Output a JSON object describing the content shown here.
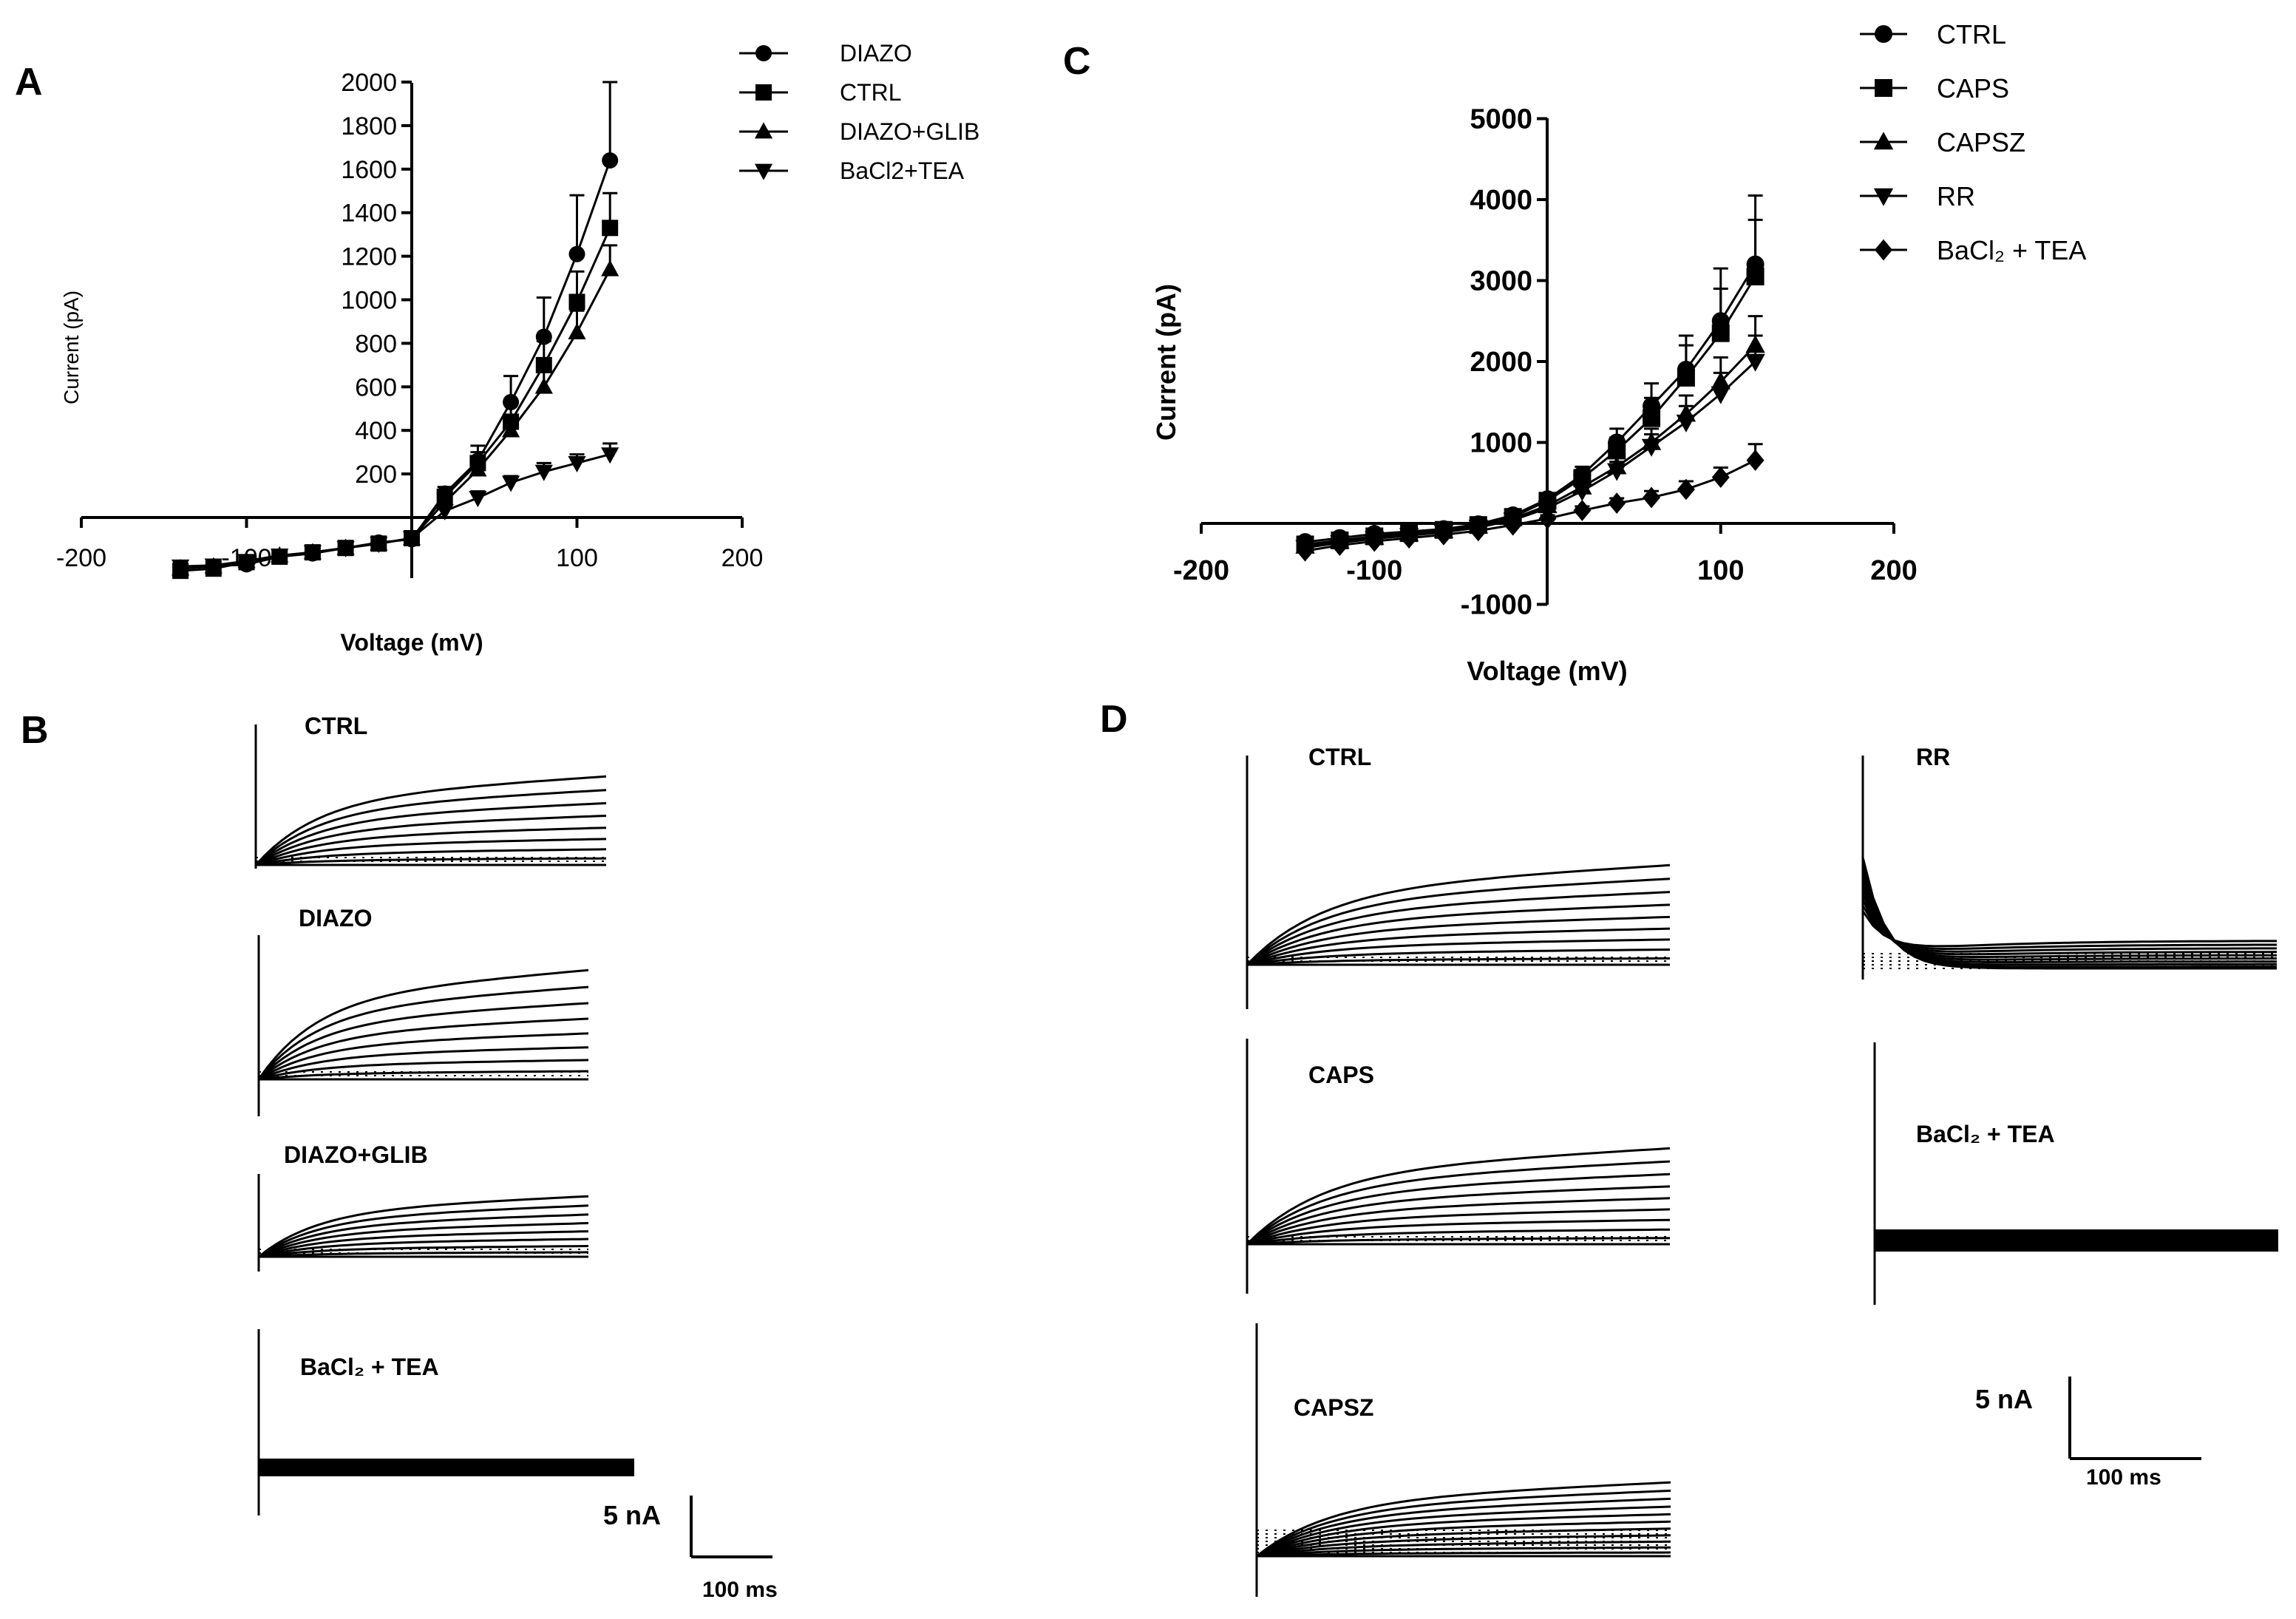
{
  "panels": {
    "a": "A",
    "b": "B",
    "c": "C",
    "d": "D"
  },
  "chart_data": [
    {
      "id": "A",
      "type": "line",
      "title": "",
      "xlabel": "Voltage (mV)",
      "ylabel": "Current (pA)",
      "xlim": [
        -200,
        200
      ],
      "ylim": [
        -300,
        2000
      ],
      "xticks": [
        -200,
        -100,
        100,
        200
      ],
      "xtick_labels": [
        "-200",
        "-100",
        "100",
        "200"
      ],
      "yticks": [
        200,
        400,
        600,
        800,
        1000,
        1200,
        1400,
        1600,
        1800,
        2000
      ],
      "ytick_labels": [
        "200",
        "400",
        "600",
        "800",
        "1000",
        "1200",
        "1400",
        "1600",
        "1800",
        "2000"
      ],
      "legend_position": "top-right",
      "x": [
        -140,
        -120,
        -100,
        -80,
        -60,
        -40,
        -20,
        0,
        20,
        40,
        60,
        80,
        100,
        120
      ],
      "series": [
        {
          "name": "DIAZO",
          "marker": "circle",
          "values": [
            -230,
            -225,
            -215,
            -180,
            -165,
            -140,
            -115,
            -100,
            110,
            260,
            530,
            830,
            1210,
            1640
          ],
          "errors": [
            20,
            20,
            20,
            20,
            15,
            15,
            15,
            15,
            30,
            70,
            120,
            180,
            270,
            360
          ]
        },
        {
          "name": "CTRL",
          "marker": "square",
          "values": [
            -245,
            -235,
            -205,
            -180,
            -160,
            -140,
            -120,
            -95,
            95,
            250,
            440,
            700,
            990,
            1330
          ],
          "errors": [
            20,
            20,
            20,
            20,
            15,
            15,
            15,
            15,
            25,
            50,
            80,
            110,
            140,
            160
          ]
        },
        {
          "name": "DIAZO+GLIB",
          "marker": "triangle-up",
          "values": [
            -235,
            -225,
            -200,
            -175,
            -160,
            -140,
            -120,
            -95,
            70,
            220,
            400,
            600,
            850,
            1140
          ],
          "errors": [
            20,
            20,
            20,
            20,
            15,
            15,
            15,
            15,
            25,
            40,
            60,
            80,
            100,
            110
          ]
        },
        {
          "name": "BaCl2+TEA",
          "marker": "triangle-down",
          "values": [
            -225,
            -220,
            -200,
            -175,
            -160,
            -140,
            -120,
            -95,
            30,
            90,
            160,
            210,
            250,
            290
          ],
          "errors": [
            15,
            15,
            15,
            15,
            15,
            15,
            15,
            15,
            20,
            30,
            30,
            40,
            40,
            50
          ]
        }
      ]
    },
    {
      "id": "C",
      "type": "line",
      "title": "",
      "xlabel": "Voltage (mV)",
      "ylabel": "Current (pA)",
      "xlim": [
        -200,
        200
      ],
      "ylim": [
        -1000,
        5000
      ],
      "xticks": [
        -200,
        -100,
        100,
        200
      ],
      "xtick_labels": [
        "-200",
        "-100",
        "100",
        "200"
      ],
      "yticks": [
        -1000,
        1000,
        2000,
        3000,
        4000,
        5000
      ],
      "ytick_labels": [
        "-1000",
        "1000",
        "2000",
        "3000",
        "4000",
        "5000"
      ],
      "legend_position": "top-right",
      "x": [
        -140,
        -120,
        -100,
        -80,
        -60,
        -40,
        -20,
        0,
        20,
        40,
        60,
        80,
        100,
        120
      ],
      "series": [
        {
          "name": "CTRL",
          "marker": "circle",
          "values": [
            -230,
            -180,
            -130,
            -100,
            -70,
            -10,
            100,
            300,
            600,
            1000,
            1450,
            1900,
            2500,
            3200
          ],
          "errors": [
            40,
            40,
            40,
            40,
            40,
            40,
            50,
            70,
            100,
            170,
            280,
            420,
            650,
            850
          ]
        },
        {
          "name": "CAPS",
          "marker": "square",
          "values": [
            -260,
            -210,
            -160,
            -120,
            -80,
            -20,
            80,
            280,
            560,
            900,
            1300,
            1800,
            2350,
            3050
          ],
          "errors": [
            40,
            40,
            40,
            40,
            40,
            40,
            50,
            70,
            100,
            160,
            250,
            400,
            550,
            700
          ]
        },
        {
          "name": "CAPSZ",
          "marker": "triangle-up",
          "values": [
            -280,
            -220,
            -170,
            -130,
            -90,
            -30,
            60,
            220,
            450,
            700,
            1000,
            1350,
            1750,
            2200
          ],
          "errors": [
            40,
            40,
            40,
            40,
            40,
            40,
            50,
            60,
            80,
            120,
            170,
            230,
            300,
            360
          ]
        },
        {
          "name": "RR",
          "marker": "triangle-down",
          "values": [
            -300,
            -240,
            -190,
            -150,
            -110,
            -50,
            40,
            190,
            400,
            650,
            950,
            1250,
            1600,
            2000
          ],
          "errors": [
            40,
            40,
            40,
            40,
            40,
            40,
            50,
            60,
            80,
            110,
            150,
            200,
            260,
            320
          ]
        },
        {
          "name": "BaCl₂ + TEA",
          "marker": "diamond",
          "values": [
            -340,
            -270,
            -220,
            -180,
            -140,
            -90,
            -20,
            60,
            160,
            250,
            320,
            420,
            570,
            780
          ],
          "errors": [
            30,
            30,
            30,
            30,
            30,
            30,
            30,
            40,
            50,
            60,
            80,
            100,
            120,
            200
          ]
        }
      ]
    }
  ],
  "traces_b": [
    {
      "label": "CTRL",
      "n": 9,
      "fast": false
    },
    {
      "label": "DIAZO",
      "n": 9,
      "fast": false
    },
    {
      "label": "DIAZO+GLIB",
      "n": 9,
      "fast": false
    },
    {
      "label": "BaCl₂ + TEA",
      "n": 0,
      "fast": false
    }
  ],
  "traces_d": [
    {
      "label": "CTRL",
      "n": 10,
      "fast": false
    },
    {
      "label": "RR",
      "n": 10,
      "fast": true
    },
    {
      "label": "CAPS",
      "n": 10,
      "fast": false
    },
    {
      "label": "BaCl₂ + TEA",
      "n": 0,
      "fast": false
    },
    {
      "label": "CAPSZ",
      "n": 12,
      "fast": false
    }
  ],
  "scalebar_b": {
    "current": "5 nA",
    "time": "100 ms"
  },
  "scalebar_d": {
    "current": "5 nA",
    "time": "100 ms"
  }
}
